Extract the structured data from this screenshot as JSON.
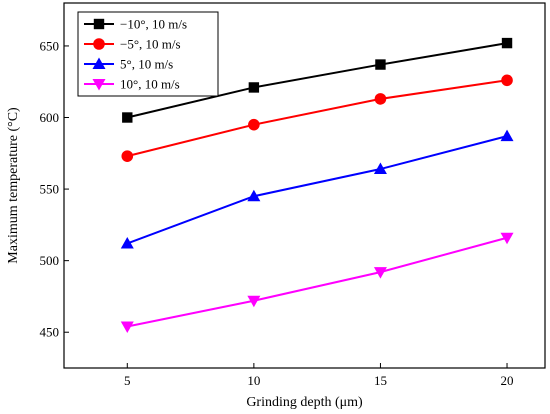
{
  "chart_data": {
    "type": "line",
    "title": "",
    "xlabel": "Grinding depth (μm)",
    "ylabel": "Maximum temperature (°C)",
    "x": [
      5,
      10,
      15,
      20
    ],
    "xticks": [
      "5",
      "10",
      "15",
      "20"
    ],
    "yticks": [
      "450",
      "500",
      "550",
      "600",
      "650"
    ],
    "xlim": [
      2.5,
      21.5
    ],
    "ylim": [
      425,
      680
    ],
    "grid": false,
    "legend_position": "top-left",
    "series": [
      {
        "name": "−10°, 10 m/s",
        "values": [
          600,
          621,
          637,
          652
        ],
        "color": "#000000",
        "marker": "square"
      },
      {
        "name": "−5°, 10 m/s",
        "values": [
          573,
          595,
          613,
          626
        ],
        "color": "#ff0000",
        "marker": "circle"
      },
      {
        "name": "5°, 10 m/s",
        "values": [
          512,
          545,
          564,
          587
        ],
        "color": "#0000ff",
        "marker": "triangle-up"
      },
      {
        "name": "10°, 10 m/s",
        "values": [
          454,
          472,
          492,
          516
        ],
        "color": "#ff00ff",
        "marker": "triangle-down"
      }
    ]
  }
}
